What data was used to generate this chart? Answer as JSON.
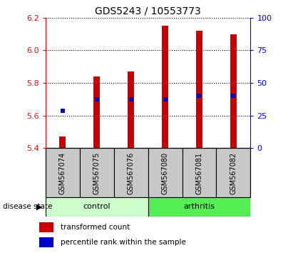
{
  "title": "GDS5243 / 10553773",
  "samples": [
    "GSM567074",
    "GSM567075",
    "GSM567076",
    "GSM567080",
    "GSM567081",
    "GSM567082"
  ],
  "groups": [
    "control",
    "control",
    "control",
    "arthritis",
    "arthritis",
    "arthritis"
  ],
  "bar_bottom": 5.4,
  "bar_tops": [
    5.47,
    5.84,
    5.87,
    6.15,
    6.12,
    6.1
  ],
  "percentile_values": [
    5.63,
    5.7,
    5.7,
    5.7,
    5.72,
    5.72
  ],
  "ylim_left": [
    5.4,
    6.2
  ],
  "ylim_right": [
    0,
    100
  ],
  "yticks_left": [
    5.4,
    5.6,
    5.8,
    6.0,
    6.2
  ],
  "yticks_right": [
    0,
    25,
    50,
    75,
    100
  ],
  "bar_color": "#cc0000",
  "percentile_color": "#0000cc",
  "bar_width": 0.18,
  "control_color": "#ccffcc",
  "arthritis_color": "#55ee55",
  "sample_box_color": "#c8c8c8",
  "legend_items": [
    "transformed count",
    "percentile rank within the sample"
  ],
  "disease_state_label": "disease state",
  "n_control": 3,
  "n_arthritis": 3
}
